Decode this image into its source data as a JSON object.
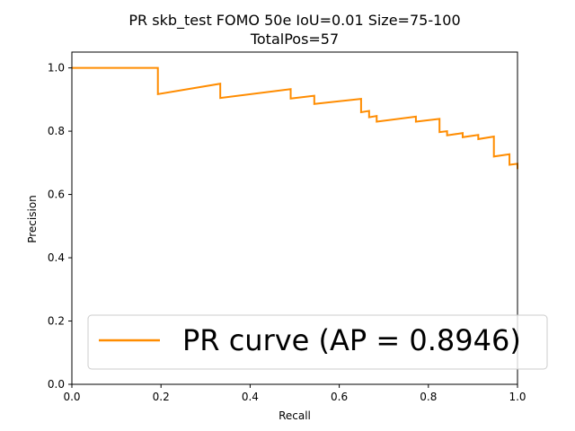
{
  "chart_data": {
    "type": "line",
    "title_line1": "PR skb_test FOMO 50e IoU=0.01 Size=75-100",
    "title_line2": "TotalPos=57",
    "xlabel": "Recall",
    "ylabel": "Precision",
    "xlim": [
      0,
      1
    ],
    "ylim": [
      0,
      1.05
    ],
    "xticks": [
      "0.0",
      "0.2",
      "0.4",
      "0.6",
      "0.8",
      "1.0"
    ],
    "yticks": [
      "0.0",
      "0.2",
      "0.4",
      "0.6",
      "0.8",
      "1.0"
    ],
    "grid": false,
    "legend_position": "lower-right",
    "series": [
      {
        "name": "PR curve (AP = 0.8946)",
        "color": "#ff8c00",
        "x": [
          0.0,
          0.193,
          0.193,
          0.333,
          0.333,
          0.491,
          0.491,
          0.544,
          0.544,
          0.649,
          0.649,
          0.667,
          0.667,
          0.684,
          0.684,
          0.772,
          0.772,
          0.825,
          0.825,
          0.842,
          0.842,
          0.877,
          0.877,
          0.912,
          0.912,
          0.947,
          0.947,
          0.982,
          0.982,
          1.0,
          1.0
        ],
        "y": [
          1.0,
          1.0,
          0.917,
          0.95,
          0.905,
          0.933,
          0.903,
          0.912,
          0.886,
          0.902,
          0.86,
          0.864,
          0.844,
          0.848,
          0.83,
          0.846,
          0.83,
          0.839,
          0.797,
          0.8,
          0.787,
          0.794,
          0.781,
          0.788,
          0.775,
          0.783,
          0.72,
          0.727,
          0.694,
          0.697,
          0.68
        ]
      }
    ]
  }
}
